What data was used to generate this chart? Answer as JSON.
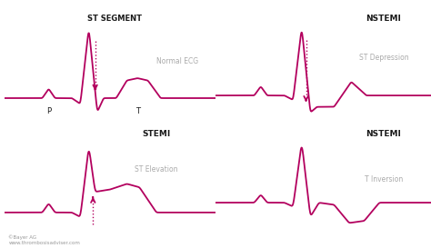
{
  "background_color": "#ffffff",
  "ecg_color": "#B3005E",
  "label_color_dark": "#1a1a1a",
  "label_color_gray": "#aaaaaa",
  "arrow_color": "#B3005E",
  "copyright_text": "©Bayer AG\nwww.thrombosisadviser.com",
  "panels": [
    {
      "title": "ST SEGMENT",
      "subtitle": "Normal ECG",
      "type": "normal"
    },
    {
      "title": "NSTEMI",
      "subtitle": "ST Depression",
      "type": "st_depression"
    },
    {
      "title": "STEMI",
      "subtitle": "ST Elevation",
      "type": "st_elevation"
    },
    {
      "title": "NSTEMI",
      "subtitle": "T Inversion",
      "type": "t_inversion"
    }
  ]
}
